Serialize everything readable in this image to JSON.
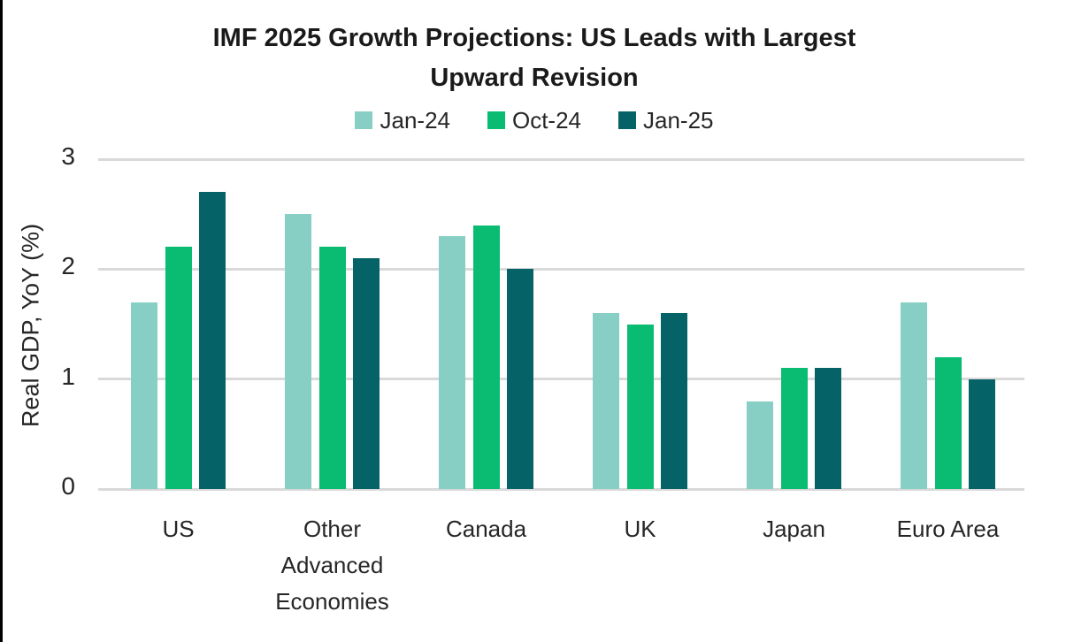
{
  "header": {
    "title": "IMF 2025 Growth Projections: US Leads with Largest Upward Revision"
  },
  "legend": [
    {
      "label": "Jan-24",
      "color": "#87CFC5"
    },
    {
      "label": "Oct-24",
      "color": "#09BC71"
    },
    {
      "label": "Jan-25",
      "color": "#056266"
    }
  ],
  "y_axis": {
    "label": "Real GDP, YoY (%)",
    "tick_labels": [
      "0",
      "1",
      "2",
      "3"
    ]
  },
  "colors": {
    "gridline": "#d9d9d9",
    "axis_text": "#262626",
    "title_text": "#1a1a1a",
    "left_edge_border": "#000000",
    "background": "#ffffff"
  },
  "chart_data": {
    "type": "bar",
    "title": "IMF 2025 Growth Projections: US Leads with Largest Upward Revision",
    "categories": [
      "US",
      "Other Advanced Economies",
      "Canada",
      "UK",
      "Japan",
      "Euro Area"
    ],
    "series": [
      {
        "name": "Jan-24",
        "color": "#87CFC5",
        "values": [
          1.7,
          2.5,
          2.3,
          1.6,
          0.8,
          1.7
        ]
      },
      {
        "name": "Oct-24",
        "color": "#09BC71",
        "values": [
          2.2,
          2.2,
          2.4,
          1.5,
          1.1,
          1.2
        ]
      },
      {
        "name": "Jan-25",
        "color": "#056266",
        "values": [
          2.7,
          2.1,
          2.0,
          1.6,
          1.1,
          1.0
        ]
      }
    ],
    "xlabel": "",
    "ylabel": "Real GDP, YoY (%)",
    "ylim": [
      0,
      3
    ],
    "yticks": [
      0,
      1,
      2,
      3
    ],
    "grid": true,
    "legend_position": "top"
  }
}
